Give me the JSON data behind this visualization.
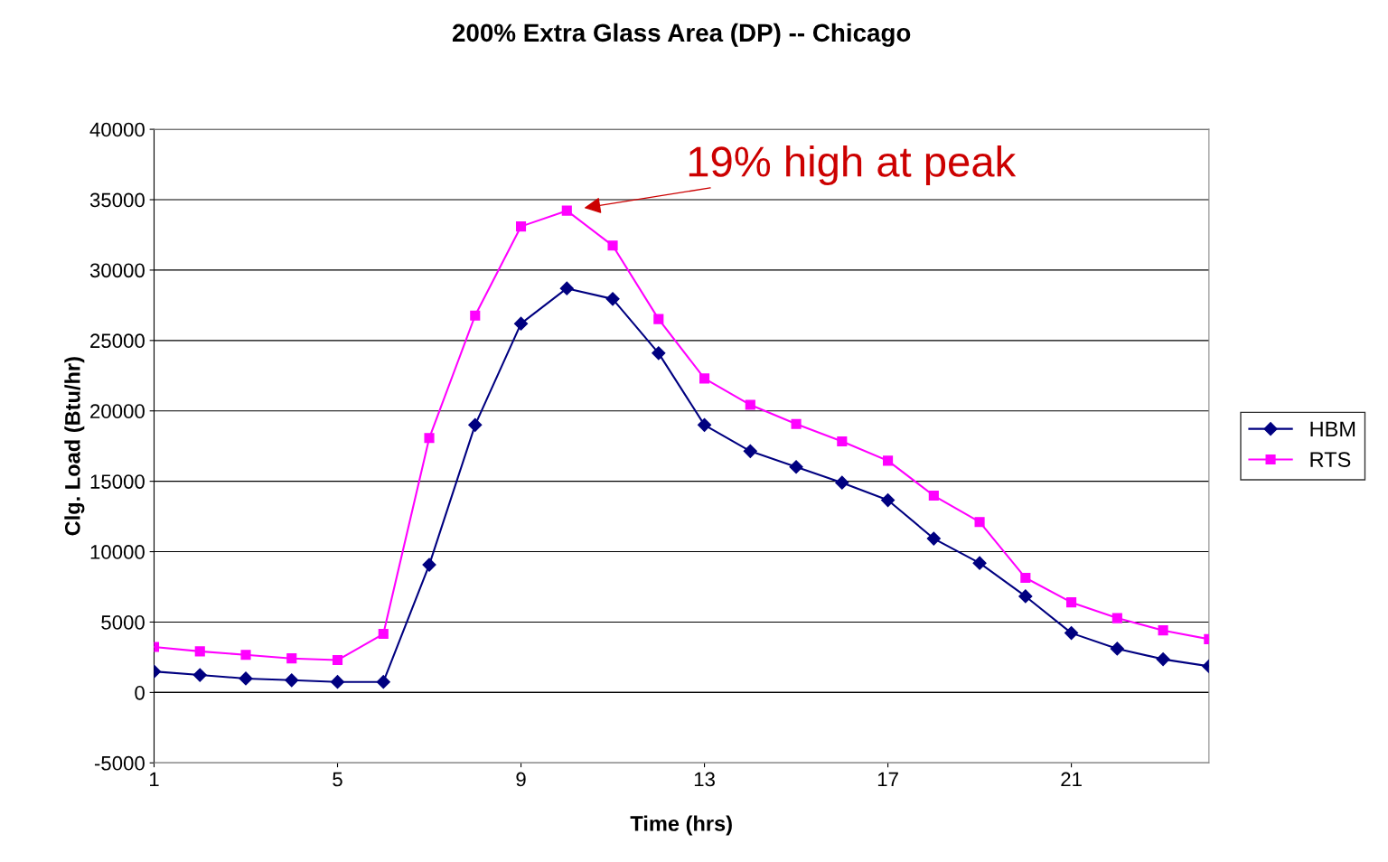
{
  "chart_data": {
    "type": "line",
    "title": "200% Extra Glass Area (DP) -- Chicago",
    "xlabel": "Time (hrs)",
    "ylabel": "Clg. Load (Btu/hr)",
    "x": [
      1,
      2,
      3,
      4,
      5,
      6,
      7,
      8,
      9,
      10,
      11,
      12,
      13,
      14,
      15,
      16,
      17,
      18,
      19,
      20,
      21,
      22,
      23,
      24
    ],
    "series": [
      {
        "name": "HBM",
        "color": "#000080",
        "marker": "diamond",
        "values": [
          1490,
          1240,
          990,
          870,
          750,
          750,
          9070,
          19000,
          26200,
          28700,
          27950,
          24100,
          19000,
          17140,
          16020,
          14900,
          13660,
          10930,
          9190,
          6830,
          4220,
          3110,
          2360,
          1860
        ]
      },
      {
        "name": "RTS",
        "color": "#ff00ff",
        "marker": "square",
        "values": [
          3230,
          2920,
          2670,
          2420,
          2300,
          4160,
          18070,
          26770,
          33100,
          34220,
          31740,
          26520,
          22300,
          20430,
          19070,
          17830,
          16460,
          13980,
          12110,
          8140,
          6400,
          5280,
          4410,
          3790
        ]
      }
    ],
    "xlim": [
      1,
      24
    ],
    "xticks": [
      1,
      5,
      9,
      13,
      17,
      21
    ],
    "ylim": [
      -5000,
      40000
    ],
    "yticks": [
      -5000,
      0,
      5000,
      10000,
      15000,
      20000,
      25000,
      30000,
      35000,
      40000
    ],
    "grid": "y",
    "legend": "right",
    "line_style": "solid",
    "annotations": [
      {
        "text": "19% high at peak",
        "x": 10,
        "y": 34220
      }
    ]
  }
}
